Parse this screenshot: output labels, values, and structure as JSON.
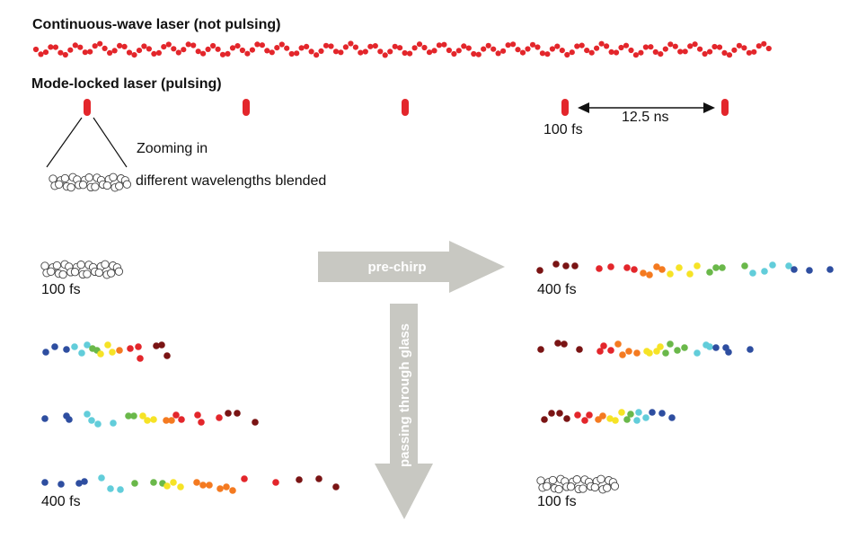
{
  "headings": {
    "cw": "Continuous-wave laser (not pulsing)",
    "ml": "Mode-locked laser (pulsing)"
  },
  "labels": {
    "pulse_duration": "100 fs",
    "period": "12.5 ns",
    "zoom": "Zooming in",
    "blend": "different wavelengths blended",
    "left_100": "100 fs",
    "left_400": "400 fs",
    "right_400": "400 fs",
    "right_100": "100 fs"
  },
  "arrows": {
    "horizontal": "pre-chirp",
    "vertical": "passing through glass"
  },
  "colors": {
    "cw_red": "#e3262b",
    "arrow_gray": "#c8c8c2",
    "spectrum": [
      "#7a1414",
      "#e3262b",
      "#f47a20",
      "#f6e326",
      "#6ab84a",
      "#62cdda",
      "#2e4ea0"
    ]
  }
}
